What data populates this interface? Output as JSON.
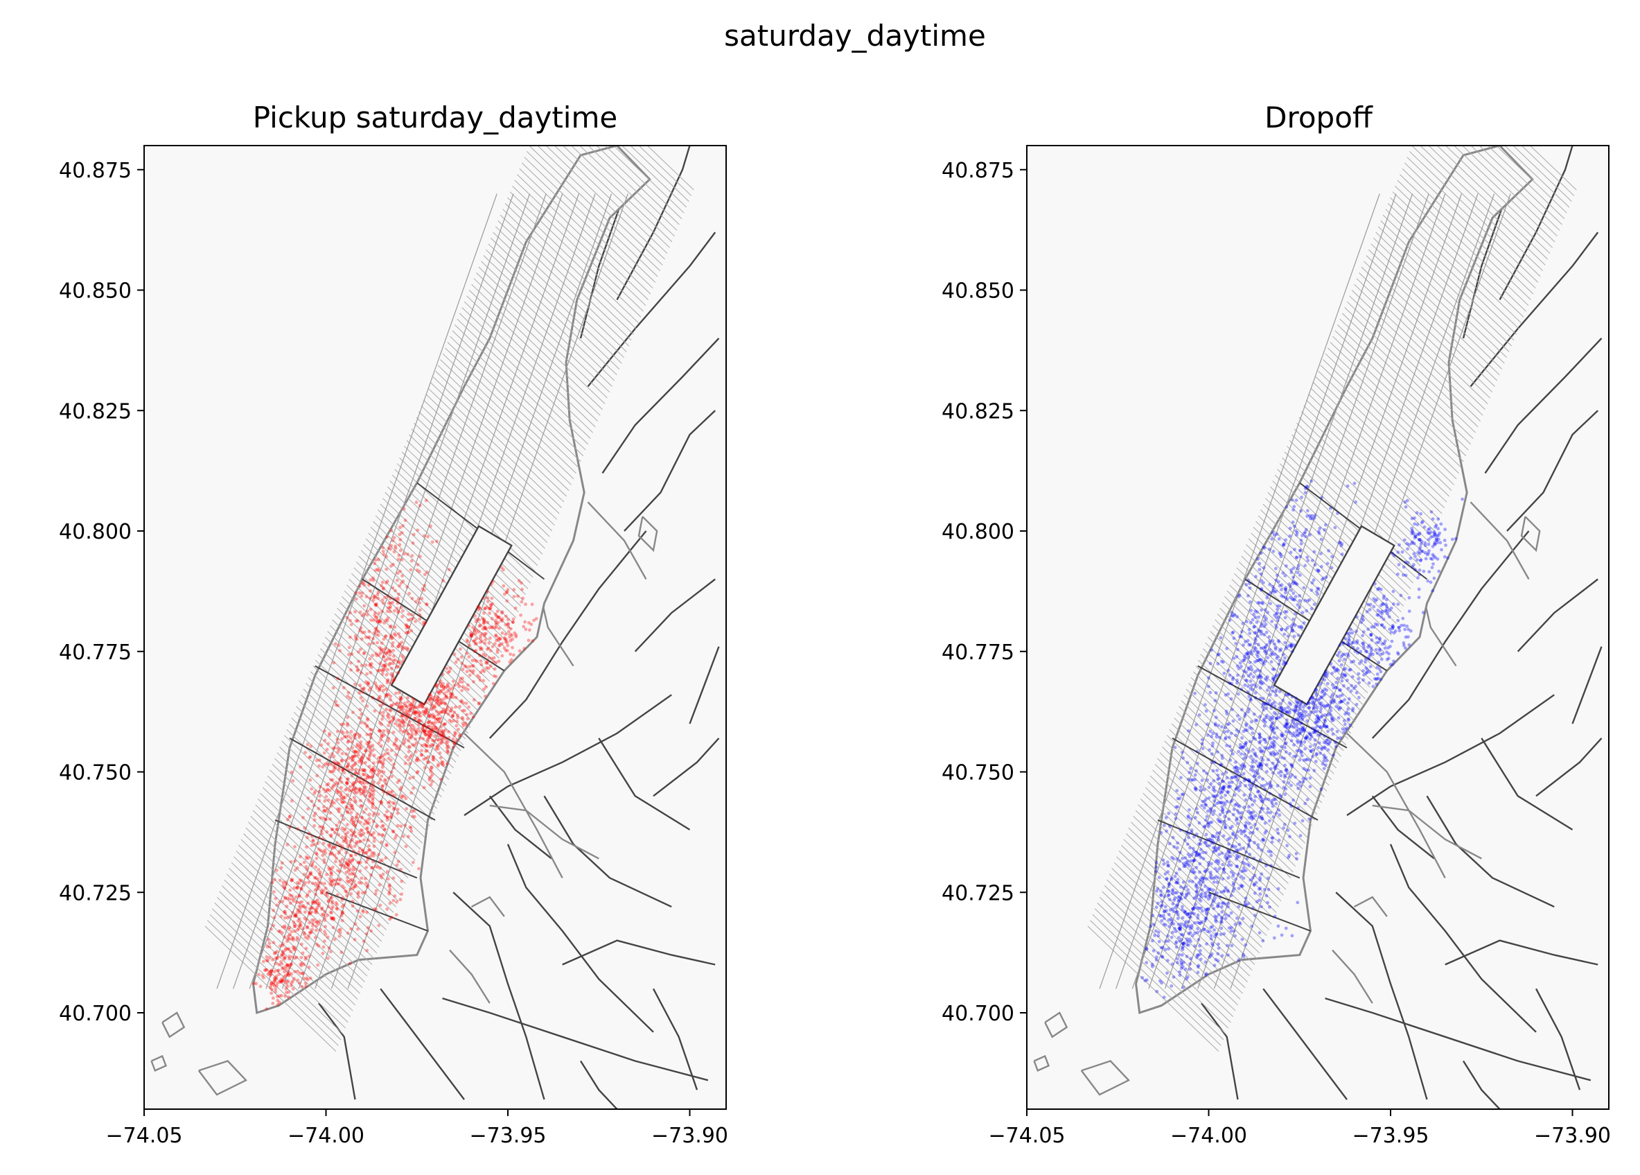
{
  "figure": {
    "title": "saturday_daytime"
  },
  "chart_data": [
    {
      "type": "scatter",
      "title": "Pickup saturday_daytime",
      "point_color": "#ff0000",
      "xlim": [
        -74.05,
        -73.89
      ],
      "ylim": [
        40.68,
        40.88
      ],
      "xticks": [
        "−74.05",
        "−74.00",
        "−73.95",
        "−73.90"
      ],
      "yticks": [
        "40.700",
        "40.725",
        "40.750",
        "40.775",
        "40.800",
        "40.825",
        "40.850",
        "40.875"
      ],
      "clusters": [
        {
          "x": -73.972,
          "y": 40.762,
          "spread": 0.006,
          "weight": 0.2
        },
        {
          "x": -73.99,
          "y": 40.75,
          "spread": 0.007,
          "weight": 0.16
        },
        {
          "x": -73.955,
          "y": 40.779,
          "spread": 0.006,
          "weight": 0.13
        },
        {
          "x": -73.982,
          "y": 40.775,
          "spread": 0.007,
          "weight": 0.12
        },
        {
          "x": -73.993,
          "y": 40.733,
          "spread": 0.008,
          "weight": 0.15
        },
        {
          "x": -74.005,
          "y": 40.722,
          "spread": 0.006,
          "weight": 0.1
        },
        {
          "x": -74.012,
          "y": 40.708,
          "spread": 0.004,
          "weight": 0.06
        },
        {
          "x": -73.985,
          "y": 40.792,
          "spread": 0.008,
          "weight": 0.08
        }
      ],
      "n_points": 2300
    },
    {
      "type": "scatter",
      "title": "Dropoff",
      "point_color": "#0000ff",
      "xlim": [
        -74.05,
        -73.89
      ],
      "ylim": [
        40.68,
        40.88
      ],
      "xticks": [
        "−74.05",
        "−74.00",
        "−73.95",
        "−73.90"
      ],
      "yticks": [
        "40.700",
        "40.725",
        "40.750",
        "40.775",
        "40.800",
        "40.825",
        "40.850",
        "40.875"
      ],
      "clusters": [
        {
          "x": -73.973,
          "y": 40.762,
          "spread": 0.007,
          "weight": 0.18
        },
        {
          "x": -73.99,
          "y": 40.75,
          "spread": 0.008,
          "weight": 0.17
        },
        {
          "x": -73.955,
          "y": 40.777,
          "spread": 0.007,
          "weight": 0.13
        },
        {
          "x": -73.983,
          "y": 40.777,
          "spread": 0.008,
          "weight": 0.12
        },
        {
          "x": -73.998,
          "y": 40.73,
          "spread": 0.009,
          "weight": 0.16
        },
        {
          "x": -74.008,
          "y": 40.718,
          "spread": 0.007,
          "weight": 0.11
        },
        {
          "x": -73.978,
          "y": 40.795,
          "spread": 0.009,
          "weight": 0.08
        },
        {
          "x": -73.94,
          "y": 40.796,
          "spread": 0.004,
          "weight": 0.05
        }
      ],
      "n_points": 2300
    }
  ],
  "colors": {
    "boundary_dark": "#444444",
    "boundary_light": "#888888",
    "map_fill": "#f8f8f8"
  }
}
